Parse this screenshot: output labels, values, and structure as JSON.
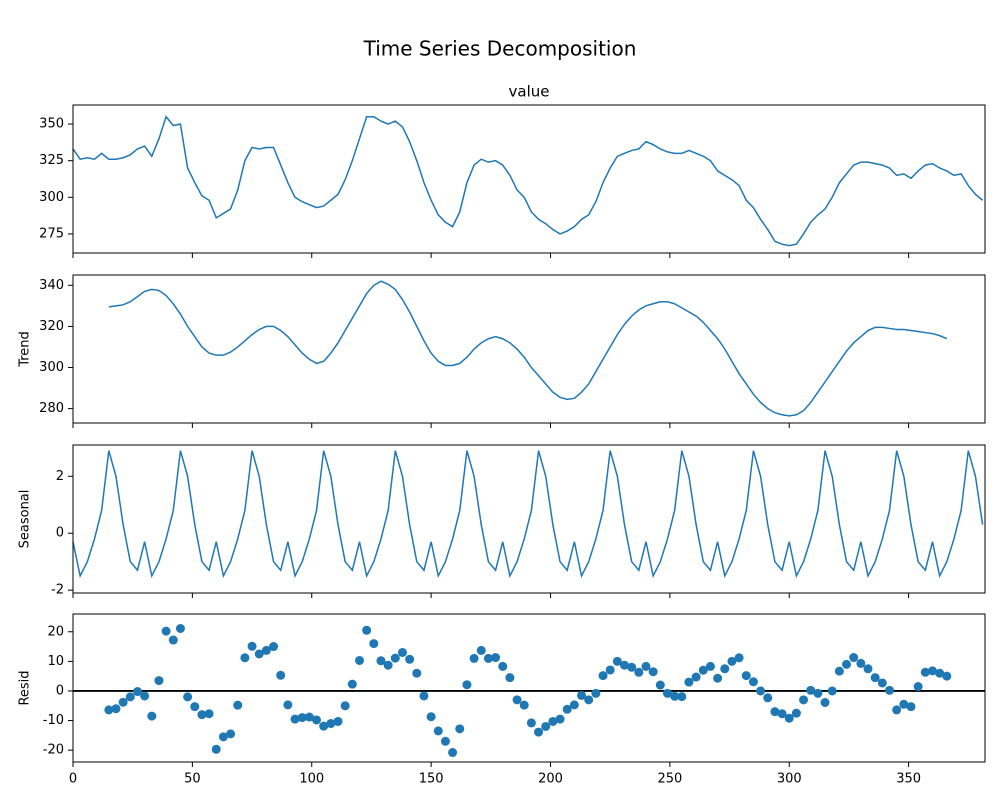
{
  "title": "Time Series Decomposition",
  "chart_data": [
    {
      "type": "line",
      "title": "value",
      "color": "#1f77b4",
      "x": [
        0,
        3,
        6,
        9,
        12,
        15,
        18,
        21,
        24,
        27,
        30,
        33,
        36,
        39,
        42,
        45,
        48,
        51,
        54,
        57,
        60,
        63,
        66,
        69,
        72,
        75,
        78,
        81,
        84,
        87,
        90,
        93,
        96,
        99,
        102,
        105,
        108,
        111,
        114,
        117,
        120,
        123,
        126,
        129,
        132,
        135,
        138,
        141,
        144,
        147,
        150,
        153,
        156,
        159,
        162,
        165,
        168,
        171,
        174,
        177,
        180,
        183,
        186,
        189,
        192,
        195,
        198,
        201,
        204,
        207,
        210,
        213,
        216,
        219,
        222,
        225,
        228,
        231,
        234,
        237,
        240,
        243,
        246,
        249,
        252,
        255,
        258,
        261,
        264,
        267,
        270,
        273,
        276,
        279,
        282,
        285,
        288,
        291,
        294,
        297,
        300,
        303,
        306,
        309,
        312,
        315,
        318,
        321,
        324,
        327,
        330,
        333,
        336,
        339,
        342,
        345,
        348,
        351,
        354,
        357,
        360,
        363,
        366,
        369,
        372,
        375,
        378,
        381
      ],
      "values": [
        333,
        326,
        327,
        326,
        330,
        326,
        326,
        327,
        329,
        333,
        335,
        328,
        340,
        355,
        349,
        350,
        320,
        310,
        301,
        298,
        286,
        289,
        292,
        305,
        325,
        334,
        333,
        334,
        334,
        322,
        310,
        300,
        297,
        295,
        293,
        294,
        298,
        302,
        312,
        325,
        340,
        355,
        355,
        352,
        350,
        352,
        348,
        338,
        325,
        310,
        298,
        288,
        283,
        280,
        290,
        310,
        322,
        326,
        324,
        325,
        322,
        315,
        305,
        300,
        290,
        285,
        282,
        278,
        275,
        277,
        280,
        285,
        288,
        297,
        310,
        320,
        328,
        330,
        332,
        333,
        338,
        336,
        333,
        331,
        330,
        330,
        332,
        330,
        328,
        325,
        318,
        315,
        312,
        308,
        298,
        293,
        285,
        278,
        270,
        268,
        267,
        268,
        275,
        283,
        288,
        292,
        300,
        310,
        316,
        322,
        324,
        324,
        323,
        322,
        320,
        315,
        316,
        313,
        318,
        322,
        323,
        320,
        318,
        315,
        316,
        308,
        302,
        298
      ],
      "xlim": [
        0,
        382
      ],
      "xticks": [
        0,
        50,
        100,
        150,
        200,
        250,
        300,
        350
      ],
      "xticklabels": false,
      "ylim": [
        262,
        363
      ],
      "yticks": [
        275,
        300,
        325,
        350
      ]
    },
    {
      "type": "line",
      "ylabel": "Trend",
      "color": "#1f77b4",
      "x": [
        0,
        3,
        6,
        9,
        12,
        15,
        18,
        21,
        24,
        27,
        30,
        33,
        36,
        39,
        42,
        45,
        48,
        51,
        54,
        57,
        60,
        63,
        66,
        69,
        72,
        75,
        78,
        81,
        84,
        87,
        90,
        93,
        96,
        99,
        102,
        105,
        108,
        111,
        114,
        117,
        120,
        123,
        126,
        129,
        132,
        135,
        138,
        141,
        144,
        147,
        150,
        153,
        156,
        159,
        162,
        165,
        168,
        171,
        174,
        177,
        180,
        183,
        186,
        189,
        192,
        195,
        198,
        201,
        204,
        207,
        210,
        213,
        216,
        219,
        222,
        225,
        228,
        231,
        234,
        237,
        240,
        243,
        246,
        249,
        252,
        255,
        258,
        261,
        264,
        267,
        270,
        273,
        276,
        279,
        282,
        285,
        288,
        291,
        294,
        297,
        300,
        303,
        306,
        309,
        312,
        315,
        318,
        321,
        324,
        327,
        330,
        333,
        336,
        339,
        342,
        345,
        348,
        351,
        354,
        357,
        360,
        363,
        366,
        369,
        372,
        375,
        378,
        381
      ],
      "values": [
        null,
        null,
        null,
        null,
        null,
        329.5,
        330,
        330.5,
        332,
        334.5,
        337,
        338,
        337.5,
        335,
        331,
        326,
        320,
        315,
        310,
        307,
        306,
        306,
        307.5,
        310,
        313,
        316,
        318.5,
        320,
        320,
        318,
        315,
        311,
        307,
        304,
        302,
        303,
        307,
        312,
        318,
        324,
        330,
        336,
        340,
        342,
        340.5,
        338,
        333,
        327,
        320,
        313,
        307,
        303,
        301,
        301,
        302,
        305,
        309,
        312,
        314,
        315,
        314,
        312,
        309,
        305,
        300,
        296,
        292,
        288,
        285.5,
        284.5,
        285,
        288,
        292,
        298,
        304,
        310,
        316,
        321,
        325,
        328,
        330,
        331,
        332,
        332,
        331,
        329,
        327,
        325,
        322,
        318,
        314,
        309,
        303,
        297,
        292,
        287,
        283,
        280,
        278,
        277,
        276.5,
        277,
        279,
        283,
        288,
        293,
        298,
        303,
        308,
        312,
        315,
        318,
        319.5,
        319.5,
        319,
        318.5,
        318.5,
        318,
        317.5,
        317,
        316.5,
        315.5,
        314,
        null,
        null,
        null,
        null,
        null
      ],
      "xlim": [
        0,
        382
      ],
      "xticks": [
        0,
        50,
        100,
        150,
        200,
        250,
        300,
        350
      ],
      "xticklabels": false,
      "ylim": [
        273,
        345
      ],
      "yticks": [
        280,
        300,
        320,
        340
      ]
    },
    {
      "type": "line",
      "ylabel": "Seasonal",
      "color": "#1f77b4",
      "x": [
        0,
        3,
        6,
        9,
        12,
        15,
        18,
        21,
        24,
        27,
        30,
        33,
        36,
        39,
        42,
        45,
        48,
        51,
        54,
        57,
        60,
        63,
        66,
        69,
        72,
        75,
        78,
        81,
        84,
        87,
        90,
        93,
        96,
        99,
        102,
        105,
        108,
        111,
        114,
        117,
        120,
        123,
        126,
        129,
        132,
        135,
        138,
        141,
        144,
        147,
        150,
        153,
        156,
        159,
        162,
        165,
        168,
        171,
        174,
        177,
        180,
        183,
        186,
        189,
        192,
        195,
        198,
        201,
        204,
        207,
        210,
        213,
        216,
        219,
        222,
        225,
        228,
        231,
        234,
        237,
        240,
        243,
        246,
        249,
        252,
        255,
        258,
        261,
        264,
        267,
        270,
        273,
        276,
        279,
        282,
        285,
        288,
        291,
        294,
        297,
        300,
        303,
        306,
        309,
        312,
        315,
        318,
        321,
        324,
        327,
        330,
        333,
        336,
        339,
        342,
        345,
        348,
        351,
        354,
        357,
        360,
        363,
        366,
        369,
        372,
        375,
        378,
        381
      ],
      "values": [
        -0.3,
        -1.5,
        -1.0,
        -0.2,
        0.8,
        2.9,
        2.0,
        0.3,
        -1.0,
        -1.3,
        -0.3,
        -1.5,
        -1.0,
        -0.2,
        0.8,
        2.9,
        2.0,
        0.3,
        -1.0,
        -1.3,
        -0.3,
        -1.5,
        -1.0,
        -0.2,
        0.8,
        2.9,
        2.0,
        0.3,
        -1.0,
        -1.3,
        -0.3,
        -1.5,
        -1.0,
        -0.2,
        0.8,
        2.9,
        2.0,
        0.3,
        -1.0,
        -1.3,
        -0.3,
        -1.5,
        -1.0,
        -0.2,
        0.8,
        2.9,
        2.0,
        0.3,
        -1.0,
        -1.3,
        -0.3,
        -1.5,
        -1.0,
        -0.2,
        0.8,
        2.9,
        2.0,
        0.3,
        -1.0,
        -1.3,
        -0.3,
        -1.5,
        -1.0,
        -0.2,
        0.8,
        2.9,
        2.0,
        0.3,
        -1.0,
        -1.3,
        -0.3,
        -1.5,
        -1.0,
        -0.2,
        0.8,
        2.9,
        2.0,
        0.3,
        -1.0,
        -1.3,
        -0.3,
        -1.5,
        -1.0,
        -0.2,
        0.8,
        2.9,
        2.0,
        0.3,
        -1.0,
        -1.3,
        -0.3,
        -1.5,
        -1.0,
        -0.2,
        0.8,
        2.9,
        2.0,
        0.3,
        -1.0,
        -1.3,
        -0.3,
        -1.5,
        -1.0,
        -0.2,
        0.8,
        2.9,
        2.0,
        0.3,
        -1.0,
        -1.3,
        -0.3,
        -1.5,
        -1.0,
        -0.2,
        0.8,
        2.9,
        2.0,
        0.3,
        -1.0,
        -1.3,
        -0.3,
        -1.5,
        -1.0,
        -0.2,
        0.8,
        2.9,
        2.0,
        0.3
      ],
      "xlim": [
        0,
        382
      ],
      "xticks": [
        0,
        50,
        100,
        150,
        200,
        250,
        300,
        350
      ],
      "xticklabels": false,
      "ylim": [
        -2.1,
        3.1
      ],
      "yticks": [
        -2,
        0,
        2
      ]
    },
    {
      "type": "scatter",
      "ylabel": "Resid",
      "color": "#1f77b4",
      "hline": 0,
      "x": [
        0,
        3,
        6,
        9,
        12,
        15,
        18,
        21,
        24,
        27,
        30,
        33,
        36,
        39,
        42,
        45,
        48,
        51,
        54,
        57,
        60,
        63,
        66,
        69,
        72,
        75,
        78,
        81,
        84,
        87,
        90,
        93,
        96,
        99,
        102,
        105,
        108,
        111,
        114,
        117,
        120,
        123,
        126,
        129,
        132,
        135,
        138,
        141,
        144,
        147,
        150,
        153,
        156,
        159,
        162,
        165,
        168,
        171,
        174,
        177,
        180,
        183,
        186,
        189,
        192,
        195,
        198,
        201,
        204,
        207,
        210,
        213,
        216,
        219,
        222,
        225,
        228,
        231,
        234,
        237,
        240,
        243,
        246,
        249,
        252,
        255,
        258,
        261,
        264,
        267,
        270,
        273,
        276,
        279,
        282,
        285,
        288,
        291,
        294,
        297,
        300,
        303,
        306,
        309,
        312,
        315,
        318,
        321,
        324,
        327,
        330,
        333,
        336,
        339,
        342,
        345,
        348,
        351,
        354,
        357,
        360,
        363,
        366,
        369,
        372,
        375,
        378,
        381
      ],
      "values": [
        null,
        null,
        null,
        null,
        null,
        -6.4,
        -6,
        -3.8,
        -2,
        -0.2,
        -1.7,
        -8.5,
        3.5,
        20.2,
        17.2,
        21.1,
        -2,
        -5.3,
        -8,
        -7.7,
        -19.7,
        -15.5,
        -14.5,
        -4.8,
        11.2,
        15.1,
        12.5,
        13.7,
        15,
        5.3,
        -4.7,
        -9.5,
        -9,
        -8.8,
        -9.8,
        -11.9,
        -11,
        -10.3,
        -5,
        2.3,
        10.3,
        20.5,
        16,
        10.2,
        8.7,
        11.1,
        13,
        10.7,
        6,
        -1.7,
        -8.7,
        -13.5,
        -17,
        -20.8,
        -12.8,
        2.1,
        11,
        13.7,
        11,
        11.3,
        8.3,
        4.5,
        -3,
        -4.8,
        -10.8,
        -13.9,
        -12,
        -10.3,
        -9.5,
        -6.2,
        -4.7,
        -1.5,
        -3,
        -0.8,
        5.2,
        7.1,
        10,
        8.7,
        8,
        6.3,
        8.3,
        6.5,
        2,
        -0.8,
        -1.8,
        -1.9,
        3,
        4.7,
        7,
        8.3,
        4.3,
        7.5,
        10,
        11.2,
        5.2,
        3.1,
        0,
        -2.3,
        -7,
        -7.7,
        -9.2,
        -7.5,
        -3,
        0.2,
        -0.8,
        -3.9,
        0,
        6.7,
        9,
        11.3,
        9.3,
        7.5,
        4.5,
        2.7,
        0.2,
        -6.4,
        -4.5,
        -5.3,
        1.5,
        6.3,
        6.8,
        6,
        5,
        null,
        null,
        null,
        null,
        null
      ],
      "xlim": [
        0,
        382
      ],
      "xticks": [
        0,
        50,
        100,
        150,
        200,
        250,
        300,
        350
      ],
      "xticklabels": true,
      "ylim": [
        -24,
        26
      ],
      "yticks": [
        -20,
        -10,
        0,
        10,
        20
      ]
    }
  ]
}
